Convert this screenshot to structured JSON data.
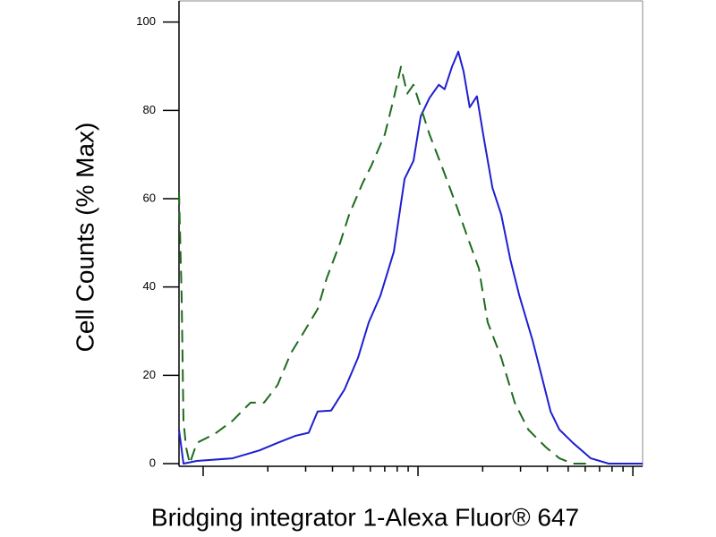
{
  "chart_data": {
    "type": "line",
    "xlabel": "Bridging integrator 1-Alexa Fluor® 647",
    "ylabel": "Cell Counts (% Max)",
    "xscale": "log",
    "xlim": [
      77.2,
      11100
    ],
    "xticks": [
      100,
      200,
      300,
      400,
      500,
      600,
      700,
      800,
      900,
      1000,
      2000,
      3000,
      4000,
      5000,
      6000,
      7000,
      8000,
      9000,
      10000
    ],
    "ylim": [
      0,
      105
    ],
    "yticks": [
      0,
      20,
      40,
      60,
      80,
      100
    ],
    "series": [
      {
        "color": "#1f1fd0",
        "style": "solid",
        "x": [
          77.2,
          81.0,
          93.5,
          137,
          183,
          222,
          269,
          310,
          341,
          394,
          455,
          526,
          590,
          668,
          772,
          866,
          953,
          1030,
          1130,
          1250,
          1330,
          1440,
          1540,
          1630,
          1740,
          1880,
          2010,
          2220,
          2440,
          2690,
          2960,
          3410,
          3760,
          4140,
          4550,
          5260,
          6370,
          7720,
          9350,
          11100
        ],
        "values": [
          7.7,
          0,
          0.6,
          1.2,
          3,
          4.7,
          6.3,
          7,
          11.8,
          12,
          16.8,
          24,
          32,
          38,
          48,
          64.5,
          68.6,
          78.7,
          82.8,
          85.8,
          84.8,
          89.9,
          93.3,
          88.8,
          80.7,
          83.2,
          74.6,
          62.5,
          56.4,
          46.2,
          38.1,
          28,
          19.9,
          11.8,
          7.7,
          4.7,
          1.2,
          0,
          0,
          0
        ]
      },
      {
        "color": "#1e6b1e",
        "style": "dashed",
        "x": [
          77.2,
          79.4,
          81.0,
          83.3,
          86.6,
          93.5,
          113,
          137,
          166,
          192,
          222,
          256,
          296,
          341,
          376,
          434,
          478,
          552,
          607,
          701,
          772,
          833,
          891,
          953,
          1030,
          1130,
          1310,
          1510,
          1700,
          1920,
          2110,
          2440,
          2820,
          3260,
          3940,
          4550,
          5260,
          6370
        ],
        "values": [
          61.5,
          38,
          9.7,
          3.7,
          0,
          4.7,
          6.7,
          9.7,
          13.8,
          13.8,
          17.8,
          25,
          30,
          35,
          42,
          50,
          56.4,
          63.5,
          67.5,
          74.6,
          82.8,
          89.9,
          83.8,
          85.8,
          80.7,
          74.6,
          66.5,
          58.4,
          51.3,
          44.2,
          32,
          24,
          13.8,
          7.7,
          3.7,
          1.2,
          0,
          0
        ]
      }
    ]
  }
}
